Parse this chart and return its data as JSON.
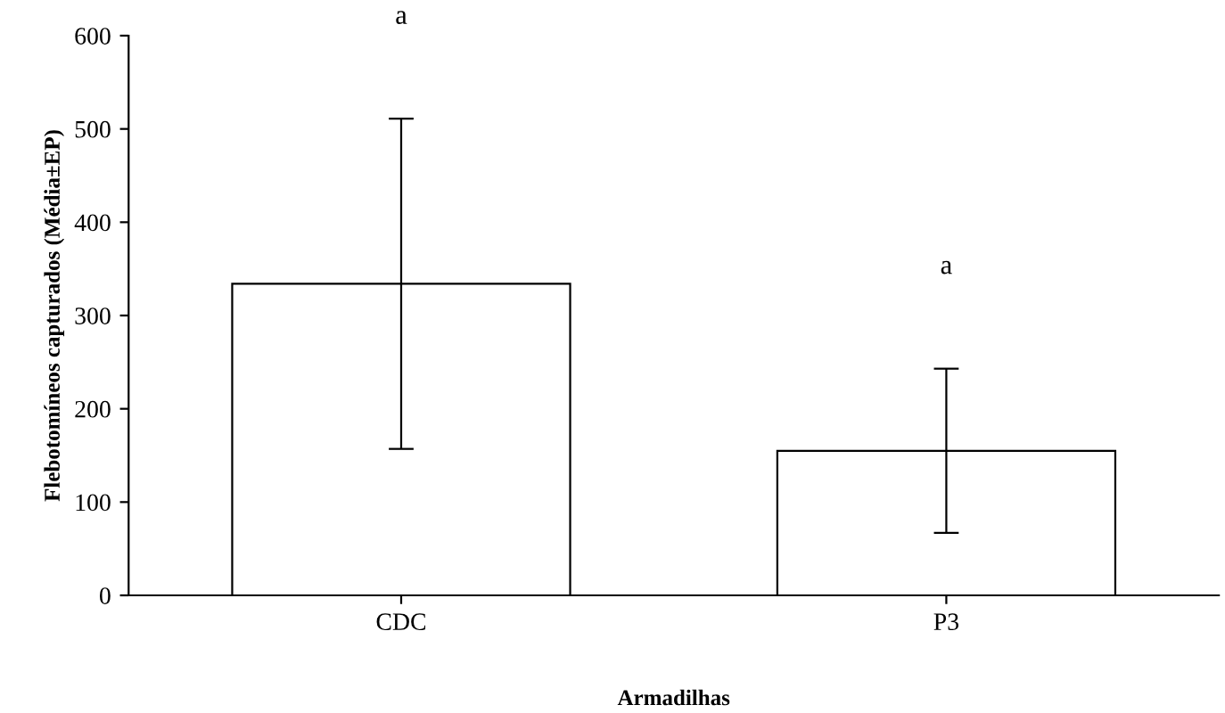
{
  "chart_data": {
    "type": "bar",
    "xlabel": "Armadilhas",
    "ylabel": "Flebotomíneos capturados (Média±EP)",
    "categories": [
      "CDC",
      "P3"
    ],
    "values": [
      334,
      155
    ],
    "color": "#ffffff",
    "errors": [
      [
        157,
        511
      ],
      [
        67,
        243
      ]
    ],
    "ylim": [
      0,
      600
    ],
    "yticks": [
      0,
      100,
      200,
      300,
      400,
      500,
      600
    ],
    "grid": false,
    "annotations": [
      "a",
      "a"
    ]
  }
}
